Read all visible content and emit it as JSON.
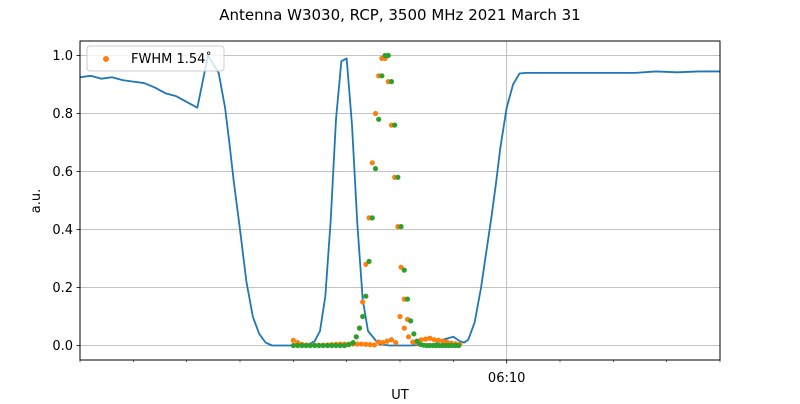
{
  "chart_data": {
    "type": "line",
    "title": "Antenna W3030, RCP, 3500 MHz 2021 March 31",
    "xlabel": "UT",
    "ylabel": "a.u.",
    "x_unit": "minutes",
    "xlim": [
      -20,
      10
    ],
    "ylim": [
      -0.05,
      1.05
    ],
    "x_major_ticks": [
      {
        "value": 0,
        "label": "06:10"
      }
    ],
    "x_minor_ticks": [
      -20,
      -17.5,
      -15,
      -12.5,
      -10,
      -7.5,
      -5,
      -2.5,
      2.5,
      5,
      7.5,
      10
    ],
    "y_ticks": [
      {
        "value": 0.0,
        "label": "0.0"
      },
      {
        "value": 0.2,
        "label": "0.2"
      },
      {
        "value": 0.4,
        "label": "0.4"
      },
      {
        "value": 0.6,
        "label": "0.6"
      },
      {
        "value": 0.8,
        "label": "0.8"
      },
      {
        "value": 1.0,
        "label": "1.0"
      }
    ],
    "grid": true,
    "legend": {
      "placement": "top-left",
      "label": "FWHM 1.54$^\\circ$",
      "display": "FWHM 1.54˚"
    },
    "series": [
      {
        "kind": "line",
        "color": "#1f77b4",
        "x": [
          -20,
          -19.5,
          -19,
          -18.5,
          -18,
          -17.5,
          -17,
          -16.5,
          -16,
          -15.5,
          -15,
          -14.5,
          -14,
          -13.5,
          -13.2,
          -13,
          -12.8,
          -12.5,
          -12.2,
          -11.9,
          -11.6,
          -11.3,
          -11,
          -10.5,
          -10,
          -9.5,
          -9.25,
          -9.0,
          -8.75,
          -8.5,
          -8.25,
          -8.0,
          -7.75,
          -7.5,
          -7.25,
          -7.0,
          -6.75,
          -6.5,
          -6.0,
          -5.5,
          -5.0,
          -4.5,
          -4.0,
          -3.5,
          -3.0,
          -2.5,
          -2.2,
          -2.0,
          -1.8,
          -1.5,
          -1.2,
          -1.0,
          -0.7,
          -0.5,
          -0.3,
          0,
          0.3,
          0.6,
          0.9,
          1.2,
          1.5,
          2,
          2.5,
          3,
          4,
          5,
          6,
          7,
          8,
          9,
          10
        ],
        "y": [
          0.925,
          0.93,
          0.92,
          0.925,
          0.915,
          0.91,
          0.905,
          0.89,
          0.87,
          0.86,
          0.84,
          0.82,
          1.0,
          0.94,
          0.82,
          0.7,
          0.57,
          0.4,
          0.22,
          0.1,
          0.04,
          0.01,
          0.0,
          0.0,
          0.0,
          0.002,
          0.005,
          0.015,
          0.05,
          0.17,
          0.43,
          0.78,
          0.98,
          0.99,
          0.76,
          0.42,
          0.16,
          0.05,
          0.005,
          0.0,
          0.0,
          0.0,
          0.002,
          0.0,
          0.02,
          0.03,
          0.015,
          0.01,
          0.02,
          0.08,
          0.2,
          0.3,
          0.45,
          0.56,
          0.68,
          0.82,
          0.9,
          0.938,
          0.94,
          0.94,
          0.94,
          0.94,
          0.94,
          0.94,
          0.94,
          0.94,
          0.94,
          0.945,
          0.942,
          0.945,
          0.945
        ]
      },
      {
        "kind": "scatter",
        "name": "FWHM 1.54˚",
        "color": "#ff7f0e",
        "x": [
          -10,
          -9.8,
          -9.6,
          -9.4,
          -9.2,
          -9.0,
          -8.8,
          -8.6,
          -8.4,
          -8.2,
          -8.0,
          -7.8,
          -7.6,
          -7.4,
          -7.2,
          -7.0,
          -6.8,
          -6.6,
          -6.4,
          -6.2,
          -6.0,
          -5.8,
          -5.6,
          -5.4,
          -5.2,
          -5.0,
          -4.8,
          -4.6,
          -4.4,
          -4.2,
          -4.0,
          -3.8,
          -3.6,
          -3.4,
          -3.2,
          -3.0,
          -2.8,
          -2.6,
          -2.4,
          -2.2
        ],
        "y": [
          0.018,
          0.01,
          0.004,
          0.002,
          0.001,
          0.001,
          0.001,
          0.001,
          0.002,
          0.003,
          0.004,
          0.005,
          0.005,
          0.005,
          0.005,
          0.005,
          0.005,
          0.004,
          0.003,
          0.002,
          0.012,
          0.01,
          0.015,
          0.02,
          0.01,
          0.1,
          0.06,
          0.03,
          0.012,
          0.01,
          0.02,
          0.022,
          0.025,
          0.02,
          0.018,
          0.015,
          0.012,
          0.008,
          0.006,
          0.004
        ]
      },
      {
        "kind": "scatter",
        "color": "#ff7f0e",
        "x": [
          -7.05,
          -6.9,
          -6.75,
          -6.6,
          -6.45,
          -6.3,
          -6.15,
          -6.0,
          -5.85,
          -5.7,
          -5.55,
          -5.4,
          -5.25,
          -5.1,
          -4.95,
          -4.8,
          -4.65
        ],
        "y": [
          0.03,
          0.06,
          0.15,
          0.28,
          0.44,
          0.63,
          0.8,
          0.93,
          0.99,
          0.99,
          0.91,
          0.76,
          0.58,
          0.41,
          0.27,
          0.16,
          0.09
        ]
      },
      {
        "kind": "scatter",
        "color": "#2ca02c",
        "x": [
          -10,
          -9.8,
          -9.6,
          -9.4,
          -9.2,
          -9.0,
          -8.8,
          -8.6,
          -8.4,
          -8.2,
          -8.0,
          -7.8,
          -7.6,
          -7.4,
          -7.2,
          -7.05,
          -6.9,
          -6.75,
          -6.6,
          -6.45,
          -6.3,
          -6.15,
          -6.0,
          -5.85,
          -5.7,
          -5.55,
          -5.4,
          -5.25,
          -5.1,
          -4.95,
          -4.8,
          -4.65,
          -4.5,
          -4.35,
          -4.2,
          -4.05,
          -3.9,
          -3.75,
          -3.6,
          -3.45,
          -3.3,
          -3.15,
          -3.0,
          -2.85,
          -2.7,
          -2.55,
          -2.4,
          -2.25
        ],
        "y": [
          0,
          0,
          0,
          0,
          0,
          0,
          0,
          0,
          0,
          0,
          0,
          0,
          0,
          0.003,
          0.01,
          0.03,
          0.06,
          0.1,
          0.17,
          0.29,
          0.44,
          0.61,
          0.78,
          0.93,
          1.0,
          1.0,
          0.91,
          0.76,
          0.58,
          0.41,
          0.26,
          0.16,
          0.085,
          0.04,
          0.015,
          0.004,
          0.001,
          0,
          0,
          0,
          0,
          0,
          0,
          0,
          0,
          0,
          0,
          0
        ]
      }
    ]
  }
}
